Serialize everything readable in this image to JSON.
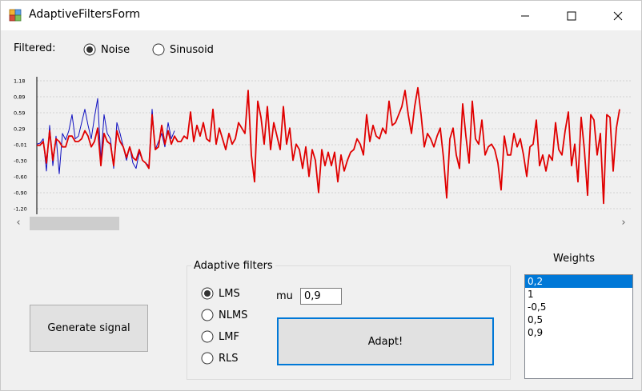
{
  "window": {
    "title": "AdaptiveFiltersForm"
  },
  "filtered": {
    "label": "Filtered:",
    "options": [
      "Noise",
      "Sinusoid"
    ],
    "selected": "Noise"
  },
  "chart_data": {
    "type": "line",
    "y_ticks": [
      "1,18",
      "0,89",
      "0,59",
      "0,29",
      "-0,01",
      "-0,30",
      "-0,60",
      "-0,90",
      "-1,20"
    ],
    "ylim": [
      -1.2,
      1.18
    ],
    "grid": true,
    "series": [
      {
        "color": "#1010c0",
        "values": [
          0.0,
          0.02,
          0.1,
          -0.5,
          0.35,
          -0.4,
          0.15,
          -0.55,
          0.2,
          0.08,
          0.25,
          0.55,
          0.1,
          0.15,
          0.4,
          0.65,
          0.35,
          0.1,
          0.5,
          0.85,
          -0.3,
          0.55,
          0.2,
          0.1,
          -0.45,
          0.4,
          0.2,
          -0.05,
          -0.3,
          -0.05,
          -0.35,
          -0.45,
          -0.15,
          -0.3,
          -0.35,
          -0.4,
          0.65,
          -0.1,
          0.05,
          0.2,
          -0.05,
          0.4,
          0.1,
          0.25
        ]
      },
      {
        "color": "#e00000",
        "values": [
          -0.02,
          -0.02,
          0.05,
          -0.35,
          0.25,
          -0.3,
          0.1,
          0.05,
          -0.05,
          -0.05,
          0.15,
          0.15,
          0.05,
          0.05,
          0.1,
          0.25,
          0.15,
          -0.05,
          0.05,
          0.3,
          -0.4,
          0.2,
          0.05,
          0.0,
          -0.4,
          0.25,
          0.05,
          -0.05,
          -0.25,
          -0.05,
          -0.25,
          -0.3,
          -0.1,
          -0.3,
          -0.35,
          -0.45,
          0.55,
          -0.1,
          -0.05,
          0.35,
          0.0,
          0.25,
          0.0,
          0.15,
          0.05,
          0.05,
          0.15,
          0.1,
          0.6,
          0.05,
          0.35,
          0.15,
          0.4,
          0.1,
          0.05,
          0.65,
          0.0,
          0.3,
          0.1,
          -0.1,
          0.2,
          0.0,
          0.1,
          0.4,
          0.3,
          0.2,
          1.0,
          -0.2,
          -0.7,
          0.8,
          0.5,
          0.0,
          0.7,
          -0.1,
          0.4,
          0.15,
          -0.1,
          0.7,
          0.0,
          0.3,
          -0.3,
          0.0,
          -0.1,
          -0.45,
          -0.05,
          -0.6,
          -0.1,
          -0.3,
          -0.9,
          -0.1,
          -0.4,
          -0.15,
          -0.4,
          -0.15,
          -0.7,
          -0.2,
          -0.5,
          -0.3,
          -0.15,
          -0.1,
          0.1,
          0.0,
          -0.2,
          0.55,
          0.05,
          0.35,
          0.15,
          0.1,
          0.3,
          0.2,
          0.8,
          0.35,
          0.4,
          0.55,
          0.7,
          1.0,
          0.55,
          0.2,
          0.7,
          1.05,
          0.55,
          -0.05,
          0.2,
          0.1,
          -0.05,
          0.15,
          0.3,
          -0.25,
          -1.0,
          0.1,
          0.3,
          -0.2,
          -0.45,
          0.75,
          0.15,
          -0.35,
          0.8,
          0.1,
          0.0,
          0.45,
          -0.2,
          -0.05,
          0.0,
          -0.1,
          -0.35,
          -0.85,
          0.15,
          -0.2,
          -0.2,
          0.2,
          -0.05,
          0.1,
          -0.2,
          -0.6,
          -0.05,
          0.0,
          0.45,
          -0.4,
          -0.2,
          -0.5,
          -0.2,
          -0.3,
          0.4,
          -0.1,
          -0.2,
          0.25,
          0.6,
          -0.4,
          0.0,
          -0.7,
          0.5,
          -0.1,
          -0.95,
          0.55,
          0.45,
          -0.2,
          0.2,
          -1.1,
          0.55,
          0.5,
          -0.5,
          0.3,
          0.65
        ]
      }
    ]
  },
  "generate_button": "Generate signal",
  "adaptive_filters": {
    "title": "Adaptive filters",
    "options": [
      "LMS",
      "NLMS",
      "LMF",
      "RLS"
    ],
    "selected": "LMS",
    "mu_label": "mu",
    "mu_value": "0,9",
    "adapt_button": "Adapt!"
  },
  "weights": {
    "title": "Weights",
    "items": [
      "0,2",
      "1",
      "-0,5",
      "0,5",
      "0,9"
    ],
    "selected_index": 0
  },
  "colors": {
    "accent": "#0078d7",
    "series_blue": "#1010c0",
    "series_red": "#e00000"
  }
}
